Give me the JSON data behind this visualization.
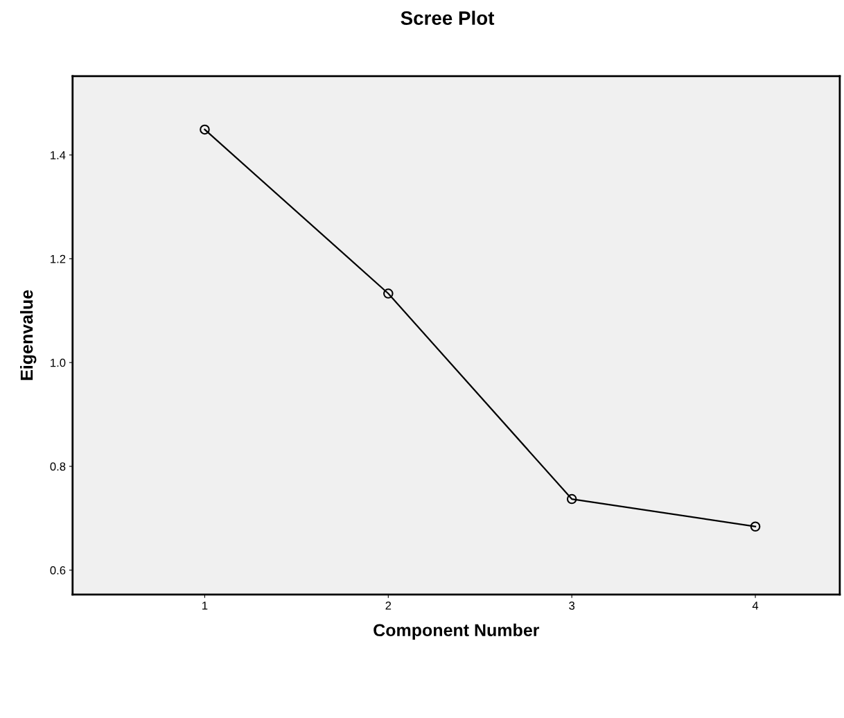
{
  "chart_data": {
    "type": "line",
    "title": "Scree Plot",
    "xlabel": "Component Number",
    "ylabel": "Eigenvalue",
    "x": [
      1,
      2,
      3,
      4
    ],
    "series": [
      {
        "color": "#000000",
        "values": [
          1.449,
          1.133,
          0.737,
          0.684
        ]
      }
    ],
    "xlim": [
      0.28,
      4.46
    ],
    "xticks": [
      1,
      2,
      3,
      4
    ],
    "ylim": [
      0.553,
      1.552
    ],
    "yticks": [
      0.6,
      0.8,
      {
        "value": 1.0,
        "label": "1.0"
      },
      1.2,
      1.4
    ],
    "marker": "circle",
    "line_style": "solid",
    "grid": false,
    "legend": false
  }
}
